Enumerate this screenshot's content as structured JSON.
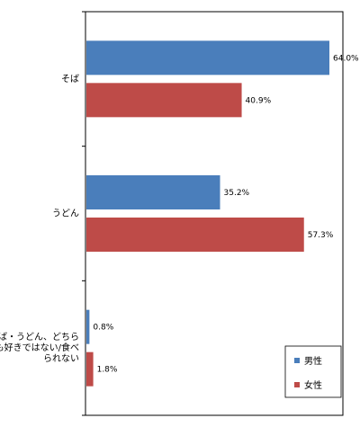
{
  "chart_data": {
    "type": "bar",
    "orientation": "horizontal",
    "categories": [
      "そば",
      "うどん",
      "そば・うどん、どちらも好きではない/食べられない"
    ],
    "category_lines": [
      [
        "そば"
      ],
      [
        "うどん"
      ],
      [
        "そば・うどん、どちら",
        "も好きではない/食べ",
        "られない"
      ]
    ],
    "series": [
      {
        "name": "男性",
        "values": [
          64.0,
          35.2,
          0.8
        ],
        "labels": [
          "64.0%",
          "35.2%",
          "0.8%"
        ],
        "color": "#4a7ebb"
      },
      {
        "name": "女性",
        "values": [
          40.9,
          57.3,
          1.8
        ],
        "labels": [
          "40.9%",
          "57.3%",
          "1.8%"
        ],
        "color": "#be4b48"
      }
    ],
    "xlim": [
      0,
      70
    ],
    "grid": false,
    "legend_position": "bottom-right"
  }
}
